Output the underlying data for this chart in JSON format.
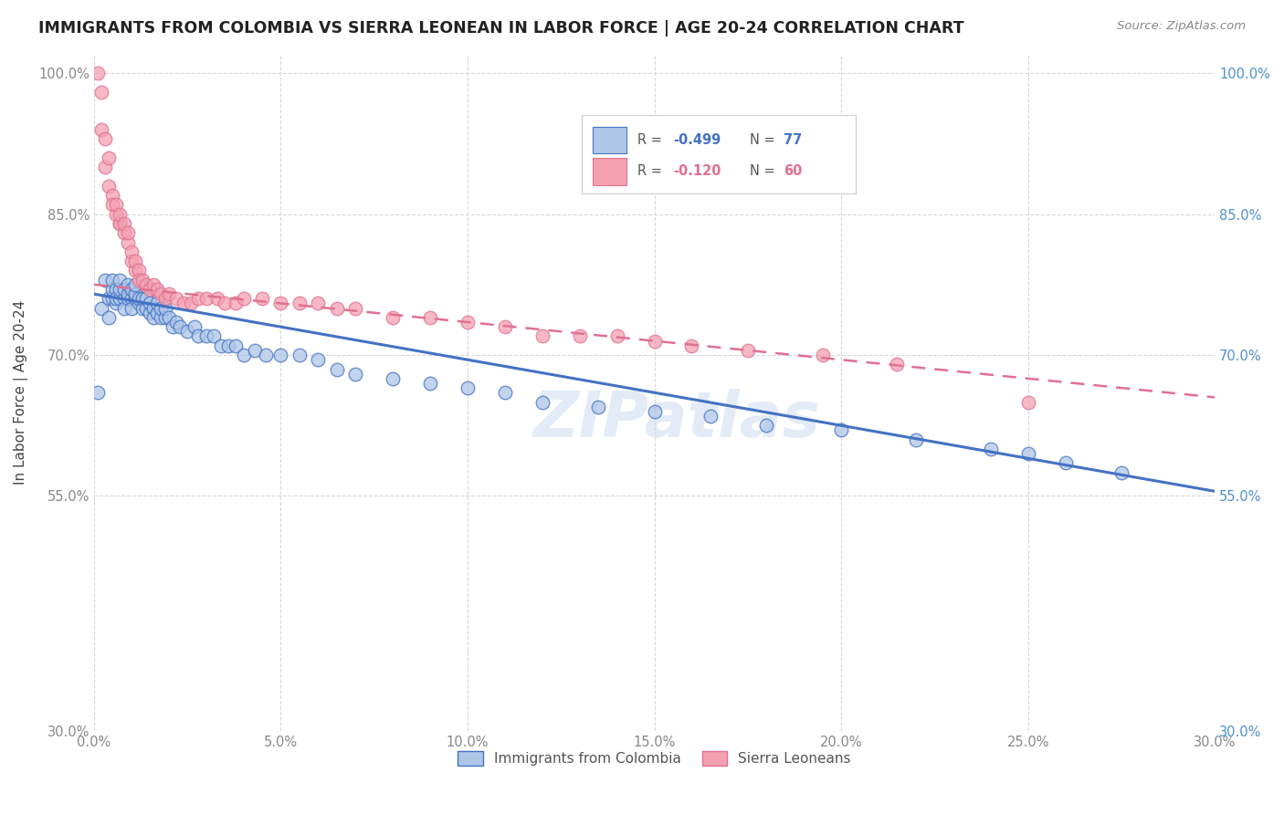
{
  "title": "IMMIGRANTS FROM COLOMBIA VS SIERRA LEONEAN IN LABOR FORCE | AGE 20-24 CORRELATION CHART",
  "source": "Source: ZipAtlas.com",
  "ylabel": "In Labor Force | Age 20-24",
  "xlim": [
    0.0,
    0.3
  ],
  "ylim": [
    0.3,
    1.02
  ],
  "xtick_labels": [
    "0.0%",
    "5.0%",
    "10.0%",
    "15.0%",
    "20.0%",
    "25.0%",
    "30.0%"
  ],
  "xtick_vals": [
    0.0,
    0.05,
    0.1,
    0.15,
    0.2,
    0.25,
    0.3
  ],
  "ytick_labels": [
    "30.0%",
    "55.0%",
    "70.0%",
    "85.0%",
    "100.0%"
  ],
  "ytick_vals": [
    0.3,
    0.55,
    0.7,
    0.85,
    1.0
  ],
  "colombia_color": "#aec6e8",
  "sierraleone_color": "#f4a0b0",
  "colombia_line_color": "#4472C4",
  "sierraleone_line_color": "#e07090",
  "watermark": "ZIPatlas",
  "watermark_color": "#ccddf0",
  "colombia_scatter_x": [
    0.001,
    0.002,
    0.003,
    0.004,
    0.004,
    0.005,
    0.005,
    0.005,
    0.006,
    0.006,
    0.006,
    0.007,
    0.007,
    0.007,
    0.008,
    0.008,
    0.008,
    0.009,
    0.009,
    0.009,
    0.01,
    0.01,
    0.01,
    0.011,
    0.011,
    0.011,
    0.012,
    0.012,
    0.013,
    0.013,
    0.014,
    0.014,
    0.015,
    0.015,
    0.016,
    0.016,
    0.017,
    0.017,
    0.018,
    0.018,
    0.019,
    0.019,
    0.02,
    0.021,
    0.022,
    0.023,
    0.025,
    0.027,
    0.028,
    0.03,
    0.032,
    0.034,
    0.036,
    0.038,
    0.04,
    0.043,
    0.046,
    0.05,
    0.055,
    0.06,
    0.065,
    0.07,
    0.08,
    0.09,
    0.1,
    0.11,
    0.12,
    0.135,
    0.15,
    0.165,
    0.18,
    0.2,
    0.22,
    0.24,
    0.25,
    0.26,
    0.275
  ],
  "colombia_scatter_y": [
    0.66,
    0.75,
    0.78,
    0.74,
    0.76,
    0.76,
    0.77,
    0.78,
    0.755,
    0.77,
    0.76,
    0.76,
    0.77,
    0.78,
    0.76,
    0.77,
    0.75,
    0.76,
    0.765,
    0.775,
    0.76,
    0.75,
    0.77,
    0.76,
    0.765,
    0.775,
    0.755,
    0.76,
    0.75,
    0.76,
    0.75,
    0.76,
    0.745,
    0.755,
    0.75,
    0.74,
    0.745,
    0.755,
    0.74,
    0.75,
    0.74,
    0.75,
    0.74,
    0.73,
    0.735,
    0.73,
    0.725,
    0.73,
    0.72,
    0.72,
    0.72,
    0.71,
    0.71,
    0.71,
    0.7,
    0.705,
    0.7,
    0.7,
    0.7,
    0.695,
    0.685,
    0.68,
    0.675,
    0.67,
    0.665,
    0.66,
    0.65,
    0.645,
    0.64,
    0.635,
    0.625,
    0.62,
    0.61,
    0.6,
    0.595,
    0.585,
    0.575
  ],
  "sierra_scatter_x": [
    0.001,
    0.002,
    0.002,
    0.003,
    0.003,
    0.004,
    0.004,
    0.005,
    0.005,
    0.006,
    0.006,
    0.007,
    0.007,
    0.007,
    0.008,
    0.008,
    0.009,
    0.009,
    0.01,
    0.01,
    0.011,
    0.011,
    0.012,
    0.012,
    0.013,
    0.014,
    0.015,
    0.016,
    0.017,
    0.018,
    0.019,
    0.02,
    0.022,
    0.024,
    0.026,
    0.028,
    0.03,
    0.033,
    0.035,
    0.038,
    0.04,
    0.045,
    0.05,
    0.055,
    0.06,
    0.065,
    0.07,
    0.08,
    0.09,
    0.1,
    0.11,
    0.12,
    0.13,
    0.14,
    0.15,
    0.16,
    0.175,
    0.195,
    0.215,
    0.25
  ],
  "sierra_scatter_y": [
    1.0,
    0.98,
    0.94,
    0.93,
    0.9,
    0.91,
    0.88,
    0.87,
    0.86,
    0.85,
    0.86,
    0.84,
    0.84,
    0.85,
    0.83,
    0.84,
    0.82,
    0.83,
    0.8,
    0.81,
    0.79,
    0.8,
    0.79,
    0.78,
    0.78,
    0.775,
    0.77,
    0.775,
    0.77,
    0.765,
    0.76,
    0.765,
    0.76,
    0.755,
    0.755,
    0.76,
    0.76,
    0.76,
    0.755,
    0.755,
    0.76,
    0.76,
    0.755,
    0.755,
    0.755,
    0.75,
    0.75,
    0.74,
    0.74,
    0.735,
    0.73,
    0.72,
    0.72,
    0.72,
    0.715,
    0.71,
    0.705,
    0.7,
    0.69,
    0.65
  ]
}
